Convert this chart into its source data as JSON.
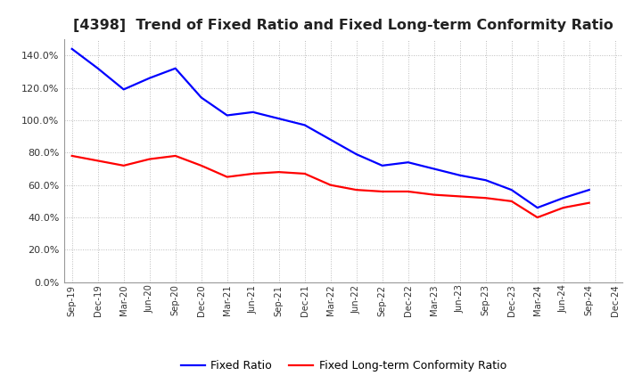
{
  "title": "[4398]  Trend of Fixed Ratio and Fixed Long-term Conformity Ratio",
  "x_labels": [
    "Sep-19",
    "Dec-19",
    "Mar-20",
    "Jun-20",
    "Sep-20",
    "Dec-20",
    "Mar-21",
    "Jun-21",
    "Sep-21",
    "Dec-21",
    "Mar-22",
    "Jun-22",
    "Sep-22",
    "Dec-22",
    "Mar-23",
    "Jun-23",
    "Sep-23",
    "Dec-23",
    "Mar-24",
    "Jun-24",
    "Sep-24",
    "Dec-24"
  ],
  "fixed_ratio": [
    1.44,
    1.32,
    1.19,
    1.26,
    1.32,
    1.14,
    1.03,
    1.05,
    1.01,
    0.97,
    0.88,
    0.79,
    0.72,
    0.74,
    0.7,
    0.66,
    0.63,
    0.57,
    0.46,
    0.52,
    0.57,
    null
  ],
  "fixed_lt_ratio": [
    0.78,
    0.75,
    0.72,
    0.76,
    0.78,
    0.72,
    0.65,
    0.67,
    0.68,
    0.67,
    0.6,
    0.57,
    0.56,
    0.56,
    0.54,
    0.53,
    0.52,
    0.5,
    0.4,
    0.46,
    0.49,
    null
  ],
  "fixed_ratio_color": "#0000FF",
  "fixed_lt_ratio_color": "#FF0000",
  "background_color": "#FFFFFF",
  "plot_bg_color": "#FFFFFF",
  "grid_color": "#BBBBBB",
  "ylim": [
    0.0,
    1.5
  ],
  "yticks": [
    0.0,
    0.2,
    0.4,
    0.6,
    0.8,
    1.0,
    1.2,
    1.4
  ],
  "title_fontsize": 11.5,
  "legend_labels": [
    "Fixed Ratio",
    "Fixed Long-term Conformity Ratio"
  ],
  "line_width": 1.6
}
